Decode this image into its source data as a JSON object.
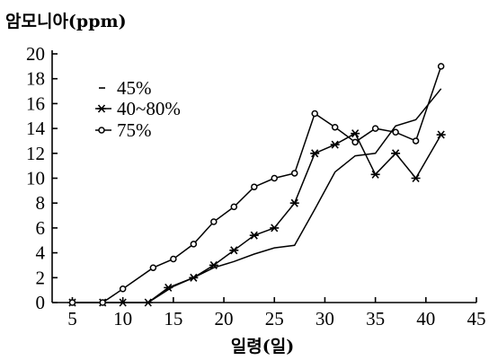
{
  "chart_data": {
    "type": "line",
    "title": "",
    "ylabel": "암모니아(ppm)",
    "xlabel": "일령(일)",
    "xlim": [
      3,
      45
    ],
    "ylim": [
      0,
      20
    ],
    "xticks": [
      5,
      10,
      15,
      20,
      25,
      30,
      35,
      40,
      45
    ],
    "yticks": [
      0,
      2,
      4,
      6,
      8,
      10,
      12,
      14,
      16,
      18,
      20
    ],
    "legend_position": "top-left",
    "series": [
      {
        "name": "45%",
        "marker": "none",
        "x": [
          5,
          8,
          10,
          12.5,
          15,
          17,
          19,
          21,
          23,
          25,
          27,
          29,
          31,
          33,
          35,
          37,
          39,
          41.5
        ],
        "y": [
          0,
          0,
          0,
          0,
          1.3,
          2,
          2.8,
          3.3,
          3.9,
          4.4,
          4.6,
          7.5,
          10.5,
          11.8,
          12,
          14.2,
          14.7,
          17.2
        ]
      },
      {
        "name": "40~80%",
        "marker": "star",
        "x": [
          5,
          8,
          10,
          12.5,
          14.5,
          17,
          19,
          21,
          23,
          25,
          27,
          29,
          31,
          33,
          35,
          37,
          39,
          41.5
        ],
        "y": [
          0,
          0,
          0,
          0,
          1.2,
          2,
          3,
          4.2,
          5.4,
          6,
          8,
          12,
          12.7,
          13.6,
          10.3,
          12,
          10,
          13.5
        ]
      },
      {
        "name": "75%",
        "marker": "circle",
        "x": [
          5,
          8,
          10,
          13,
          15,
          17,
          19,
          21,
          23,
          25,
          27,
          29,
          31,
          33,
          35,
          37,
          39,
          41.5
        ],
        "y": [
          0,
          0,
          1.1,
          2.8,
          3.5,
          4.7,
          6.5,
          7.7,
          9.3,
          10,
          10.4,
          15.2,
          14.1,
          12.9,
          14,
          13.7,
          13,
          19
        ]
      }
    ]
  }
}
